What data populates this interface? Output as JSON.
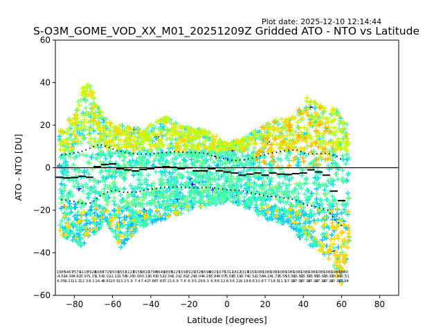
{
  "plot_date": "Plot date: 2025-12-10 12:14:44",
  "chart_data": {
    "type": "scatter",
    "title": "S-O3M_GOME_VOD_XX_M01_20251209Z Gridded ATO - NTO vs Latitude",
    "xlabel": "Latitude [degrees]",
    "ylabel": "ATO - NTO [DU]",
    "xlim": [
      -90,
      90
    ],
    "ylim": [
      -60,
      60
    ],
    "xticks": [
      -80,
      -60,
      -40,
      -20,
      0,
      20,
      40,
      60,
      80
    ],
    "yticks": [
      -60,
      -40,
      -20,
      0,
      20,
      40,
      60
    ],
    "zero_line": 0,
    "grid": false,
    "marker": "+",
    "colors": [
      "#0000ff",
      "#00bfff",
      "#00e5e5",
      "#40ffb0",
      "#80ff80",
      "#c8ff00",
      "#ffd700",
      "#ffb000"
    ],
    "envelope": {
      "lat": [
        -88,
        -84,
        -80,
        -76,
        -72,
        -68,
        -64,
        -60,
        -56,
        -52,
        -48,
        -44,
        -40,
        -36,
        -32,
        -28,
        -24,
        -20,
        -16,
        -12,
        -8,
        -4,
        0,
        4,
        8,
        12,
        16,
        20,
        24,
        28,
        32,
        36,
        40,
        44,
        48,
        52,
        56,
        60,
        64
      ],
      "upper": [
        20,
        22,
        25,
        38,
        40,
        30,
        24,
        20,
        20,
        20,
        19,
        18,
        20,
        23,
        24,
        22,
        20,
        19,
        18,
        18,
        16,
        14,
        12,
        13,
        14,
        16,
        18,
        20,
        22,
        23,
        23,
        24,
        33,
        33,
        30,
        28,
        28,
        26,
        20
      ],
      "lower": [
        -30,
        -34,
        -34,
        -38,
        -35,
        -30,
        -25,
        -30,
        -38,
        -34,
        -30,
        -28,
        -26,
        -25,
        -24,
        -22,
        -22,
        -20,
        -19,
        -18,
        -18,
        -17,
        -16,
        -17,
        -18,
        -20,
        -22,
        -24,
        -25,
        -26,
        -27,
        -30,
        -35,
        -38,
        -40,
        -42,
        -48,
        -55,
        -35
      ]
    },
    "median_steps": {
      "lat_edges": [
        -90,
        -86,
        -82,
        -78,
        -74,
        -70,
        -66,
        -62,
        -58,
        -54,
        -50,
        -46,
        -42,
        -38,
        -34,
        -30,
        -26,
        -22,
        -18,
        -14,
        -10,
        -6,
        -2,
        2,
        6,
        10,
        14,
        18,
        22,
        26,
        30,
        34,
        38,
        42,
        46,
        50,
        54,
        58,
        62
      ],
      "values": [
        -4.5,
        -4.8,
        -4.6,
        -4.0,
        -4.5,
        0.5,
        1.5,
        1.8,
        -0.5,
        -1.0,
        -1.5,
        -0.8,
        -0.5,
        0.2,
        0.5,
        0.2,
        -0.5,
        0.0,
        -1.5,
        -1.5,
        -0.5,
        -1.5,
        -2.0,
        -2.5,
        -3.5,
        -3.0,
        -2.5,
        -3.5,
        -2.5,
        -3.0,
        -3.2,
        -2.8,
        -2.5,
        -1.0,
        -2.0,
        -3.5,
        -11.0,
        -15.5
      ]
    },
    "sigma_upper": [
      6,
      6.5,
      7,
      8,
      9.5,
      11,
      10,
      8.5,
      7.5,
      6.8,
      6.4,
      6.2,
      6.5,
      7,
      7.2,
      7.5,
      7.3,
      7.2,
      7,
      6.8,
      5.5,
      4.5,
      3.6,
      3.4,
      3.8,
      4.5,
      5.3,
      6.5,
      7.2,
      7.8,
      8.2,
      8.4,
      6.5,
      6.5,
      6.6,
      6.8,
      5.5,
      3.5
    ],
    "sigma_lower": [
      -15,
      -15.5,
      -16,
      -17,
      -16.5,
      -13.5,
      -11.5,
      -10.5,
      -11.5,
      -11.5,
      -11.5,
      -10.5,
      -10,
      -9.5,
      -9.2,
      -9,
      -9.3,
      -9.4,
      -9.5,
      -9.3,
      -9.5,
      -10,
      -10.5,
      -10.5,
      -11,
      -12,
      -12.5,
      -13.5,
      -13.5,
      -14,
      -14.5,
      -15.5,
      -17.5,
      -18,
      -19,
      -20,
      -25,
      -28
    ],
    "stats_table": {
      "lat": [
        -87,
        -83,
        -79,
        -75,
        -71,
        -67,
        -63,
        -59,
        -55,
        -51,
        -47,
        -43,
        -39,
        -35,
        -31,
        -27,
        -23,
        -19,
        -15,
        -11,
        -7,
        -3,
        1,
        5,
        9,
        13,
        17,
        21,
        25,
        29,
        33,
        37,
        41,
        45,
        49,
        53,
        57,
        61
      ],
      "count": [
        "1985",
        "5467",
        "7574",
        "1116",
        "7928",
        "6086",
        "7725",
        "2509",
        "3552",
        "5123",
        "8155",
        "0810",
        "3790",
        "9649",
        "3893",
        "9229",
        "1591",
        "7921",
        "9329",
        "5598",
        "4021",
        "1076",
        "1312",
        "1812",
        "3315",
        "4150",
        "1080",
        "1080",
        "1080",
        "1080",
        "1080",
        "1080",
        "1080",
        "1080",
        "1080",
        "1080",
        "1080",
        "1080"
      ],
      "mean": [
        "-4.61",
        "-4.30",
        "-4.62",
        "-3.97",
        "-1.15",
        "1.54",
        "1.02",
        "-2.12",
        "-1.56",
        "0.26",
        "0.00",
        "-0.13",
        "-0.41",
        "0.52",
        "-2.04",
        "-2.21",
        "-2.82",
        "-2.29",
        "-3.04",
        "-4.25",
        "-3.94",
        "-4.07",
        "-5.08",
        "-3.19",
        "-3.74",
        "-2.32",
        "-2.56",
        "-4.24",
        "-1.73",
        "-5.55",
        "-15.51",
        "-15.51",
        "-15.51",
        "-15.51",
        "-15.51",
        "-15.51",
        "-15.51",
        "-15.51"
      ],
      "sigma": [
        "6.05",
        "9.21",
        "11.2",
        "12.3",
        "8.1",
        "16.4",
        "8.81",
        "10.5",
        "13.2",
        "5.9",
        "7.4",
        "7.42",
        "7.86",
        "7.83",
        "7.21",
        "6.9",
        "7.6",
        "8.3",
        "5.29",
        "6.3",
        "6.8",
        "6.12",
        "8.5",
        "6.22",
        "9.18",
        "8.6",
        "10.8",
        "7.7",
        "18.5",
        "11.3",
        "17.34",
        "17.34",
        "17.34",
        "17.34",
        "17.34",
        "17.34",
        "17.34",
        "17.34"
      ]
    }
  }
}
